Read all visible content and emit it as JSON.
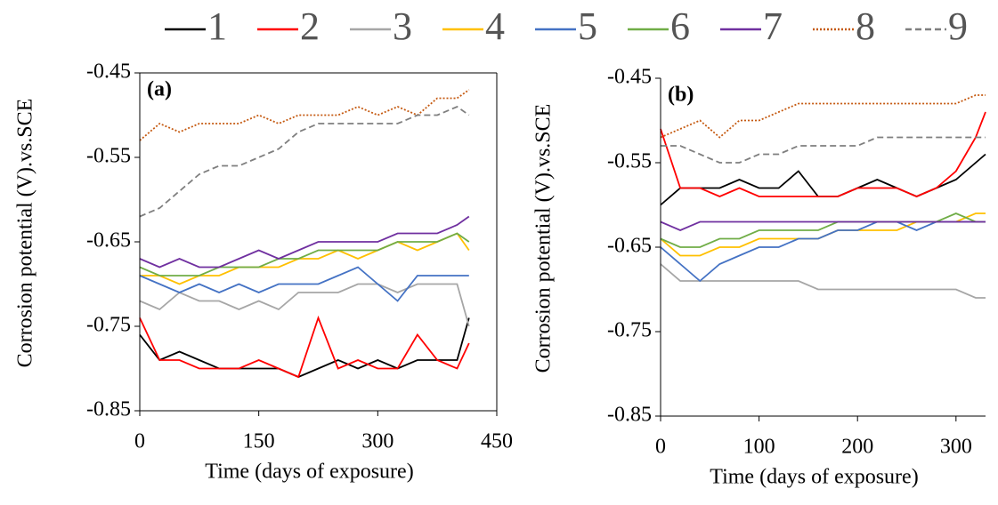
{
  "chart_data": [
    {
      "type": "line",
      "annotation": "(a)",
      "xlabel": "Time (days of exposure)",
      "ylabel": "Corrosion potential (V).vs.SCE",
      "xlim": [
        0,
        450
      ],
      "xticks": [
        0,
        150,
        300,
        450
      ],
      "ylim": [
        -0.85,
        -0.45
      ],
      "yticks": [
        -0.45,
        -0.55,
        -0.65,
        -0.75,
        -0.85
      ],
      "box": true,
      "x": [
        0,
        25,
        50,
        75,
        100,
        125,
        150,
        175,
        200,
        225,
        250,
        275,
        300,
        325,
        350,
        375,
        400,
        415
      ],
      "series": [
        {
          "name": "1",
          "color": "#000000",
          "dash": "solid",
          "values": [
            -0.76,
            -0.79,
            -0.78,
            -0.79,
            -0.8,
            -0.8,
            -0.8,
            -0.8,
            -0.81,
            -0.8,
            -0.79,
            -0.8,
            -0.79,
            -0.8,
            -0.79,
            -0.79,
            -0.79,
            -0.74
          ]
        },
        {
          "name": "2",
          "color": "#ff0000",
          "dash": "solid",
          "values": [
            -0.74,
            -0.79,
            -0.79,
            -0.8,
            -0.8,
            -0.8,
            -0.79,
            -0.8,
            -0.81,
            -0.74,
            -0.8,
            -0.79,
            -0.8,
            -0.8,
            -0.76,
            -0.79,
            -0.8,
            -0.77
          ]
        },
        {
          "name": "3",
          "color": "#a6a6a6",
          "dash": "solid",
          "values": [
            -0.72,
            -0.73,
            -0.71,
            -0.72,
            -0.72,
            -0.73,
            -0.72,
            -0.73,
            -0.71,
            -0.71,
            -0.71,
            -0.7,
            -0.7,
            -0.71,
            -0.7,
            -0.7,
            -0.7,
            -0.75
          ]
        },
        {
          "name": "4",
          "color": "#ffc000",
          "dash": "solid",
          "values": [
            -0.69,
            -0.69,
            -0.7,
            -0.69,
            -0.69,
            -0.68,
            -0.68,
            -0.68,
            -0.67,
            -0.67,
            -0.66,
            -0.67,
            -0.66,
            -0.65,
            -0.66,
            -0.65,
            -0.64,
            -0.66
          ]
        },
        {
          "name": "5",
          "color": "#4472c4",
          "dash": "solid",
          "values": [
            -0.69,
            -0.7,
            -0.71,
            -0.7,
            -0.71,
            -0.7,
            -0.71,
            -0.7,
            -0.7,
            -0.7,
            -0.69,
            -0.68,
            -0.7,
            -0.72,
            -0.69,
            -0.69,
            -0.69,
            -0.69
          ]
        },
        {
          "name": "6",
          "color": "#70ad47",
          "dash": "solid",
          "values": [
            -0.68,
            -0.69,
            -0.69,
            -0.69,
            -0.68,
            -0.68,
            -0.68,
            -0.67,
            -0.67,
            -0.66,
            -0.66,
            -0.66,
            -0.66,
            -0.65,
            -0.65,
            -0.65,
            -0.64,
            -0.65
          ]
        },
        {
          "name": "7",
          "color": "#7030a0",
          "dash": "solid",
          "values": [
            -0.67,
            -0.68,
            -0.67,
            -0.68,
            -0.68,
            -0.67,
            -0.66,
            -0.67,
            -0.66,
            -0.65,
            -0.65,
            -0.65,
            -0.65,
            -0.64,
            -0.64,
            -0.64,
            -0.63,
            -0.62
          ]
        },
        {
          "name": "8",
          "color": "#c55a11",
          "dash": "dotted",
          "values": [
            -0.53,
            -0.51,
            -0.52,
            -0.51,
            -0.51,
            -0.51,
            -0.5,
            -0.51,
            -0.5,
            -0.5,
            -0.5,
            -0.49,
            -0.5,
            -0.49,
            -0.5,
            -0.48,
            -0.48,
            -0.47
          ]
        },
        {
          "name": "9",
          "color": "#7f7f7f",
          "dash": "dashed",
          "values": [
            -0.62,
            -0.61,
            -0.59,
            -0.57,
            -0.56,
            -0.56,
            -0.55,
            -0.54,
            -0.52,
            -0.51,
            -0.51,
            -0.51,
            -0.51,
            -0.51,
            -0.5,
            -0.5,
            -0.49,
            -0.5
          ]
        }
      ]
    },
    {
      "type": "line",
      "annotation": "(b)",
      "xlabel": "Time (days of exposure)",
      "ylabel": "Corrosion potential (V).vs.SCE",
      "xlim": [
        0,
        330
      ],
      "xticks": [
        0,
        100,
        200,
        300
      ],
      "ylim": [
        -0.85,
        -0.45
      ],
      "yticks": [
        -0.45,
        -0.55,
        -0.65,
        -0.75,
        -0.85
      ],
      "box": false,
      "x": [
        0,
        20,
        40,
        60,
        80,
        100,
        120,
        140,
        160,
        180,
        200,
        220,
        240,
        260,
        280,
        300,
        320,
        330
      ],
      "series": [
        {
          "color": "#000000",
          "dash": "solid",
          "values": [
            -0.6,
            -0.58,
            -0.58,
            -0.58,
            -0.57,
            -0.58,
            -0.58,
            -0.56,
            -0.59,
            -0.59,
            -0.58,
            -0.57,
            -0.58,
            -0.59,
            -0.58,
            -0.57,
            -0.55,
            -0.54
          ]
        },
        {
          "color": "#ff0000",
          "dash": "solid",
          "values": [
            -0.51,
            -0.58,
            -0.58,
            -0.59,
            -0.58,
            -0.59,
            -0.59,
            -0.59,
            -0.59,
            -0.59,
            -0.58,
            -0.58,
            -0.58,
            -0.59,
            -0.58,
            -0.56,
            -0.52,
            -0.49
          ]
        },
        {
          "color": "#a6a6a6",
          "dash": "solid",
          "values": [
            -0.67,
            -0.69,
            -0.69,
            -0.69,
            -0.69,
            -0.69,
            -0.69,
            -0.69,
            -0.7,
            -0.7,
            -0.7,
            -0.7,
            -0.7,
            -0.7,
            -0.7,
            -0.7,
            -0.71,
            -0.71
          ]
        },
        {
          "color": "#ffc000",
          "dash": "solid",
          "values": [
            -0.64,
            -0.66,
            -0.66,
            -0.65,
            -0.65,
            -0.64,
            -0.64,
            -0.64,
            -0.64,
            -0.63,
            -0.63,
            -0.63,
            -0.63,
            -0.62,
            -0.62,
            -0.62,
            -0.61,
            -0.61
          ]
        },
        {
          "color": "#4472c4",
          "dash": "solid",
          "values": [
            -0.65,
            -0.67,
            -0.69,
            -0.67,
            -0.66,
            -0.65,
            -0.65,
            -0.64,
            -0.64,
            -0.63,
            -0.63,
            -0.62,
            -0.62,
            -0.63,
            -0.62,
            -0.62,
            -0.62,
            -0.62
          ]
        },
        {
          "color": "#70ad47",
          "dash": "solid",
          "values": [
            -0.64,
            -0.65,
            -0.65,
            -0.64,
            -0.64,
            -0.63,
            -0.63,
            -0.63,
            -0.63,
            -0.62,
            -0.62,
            -0.62,
            -0.62,
            -0.62,
            -0.62,
            -0.61,
            -0.62,
            -0.62
          ]
        },
        {
          "color": "#7030a0",
          "dash": "solid",
          "values": [
            -0.62,
            -0.63,
            -0.62,
            -0.62,
            -0.62,
            -0.62,
            -0.62,
            -0.62,
            -0.62,
            -0.62,
            -0.62,
            -0.62,
            -0.62,
            -0.62,
            -0.62,
            -0.62,
            -0.62,
            -0.62
          ]
        },
        {
          "color": "#c55a11",
          "dash": "dotted",
          "values": [
            -0.52,
            -0.51,
            -0.5,
            -0.52,
            -0.5,
            -0.5,
            -0.49,
            -0.48,
            -0.48,
            -0.48,
            -0.48,
            -0.48,
            -0.48,
            -0.48,
            -0.48,
            -0.48,
            -0.47,
            -0.47
          ]
        },
        {
          "color": "#7f7f7f",
          "dash": "dashed",
          "values": [
            -0.53,
            -0.53,
            -0.54,
            -0.55,
            -0.55,
            -0.54,
            -0.54,
            -0.53,
            -0.53,
            -0.53,
            -0.53,
            -0.52,
            -0.52,
            -0.52,
            -0.52,
            -0.52,
            -0.52,
            -0.52
          ]
        }
      ]
    }
  ]
}
